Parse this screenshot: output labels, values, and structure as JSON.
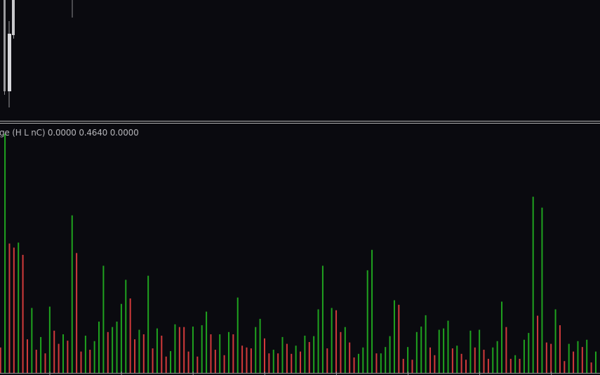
{
  "indicator_label": "ge (H L nC) 0.0000 0.4640 0.0000",
  "colors": {
    "background": "#0a0a0f",
    "up": "#1fa31f",
    "down": "#d23a3a",
    "candle": "#c8c8cc",
    "separator": "#b0b0b0"
  },
  "chart_data": {
    "type": "bar",
    "title": "",
    "xlabel": "",
    "ylabel": "",
    "grid": false,
    "ylim": [
      0,
      5.46
    ],
    "values": [
      0.56,
      5.27,
      2.85,
      2.76,
      2.87,
      2.6,
      0.74,
      1.43,
      0.51,
      0.79,
      0.43,
      1.46,
      0.93,
      0.64,
      0.85,
      0.71,
      3.47,
      2.64,
      0.47,
      0.82,
      0.51,
      0.7,
      1.13,
      2.36,
      0.9,
      1.01,
      1.13,
      1.52,
      2.05,
      1.64,
      0.74,
      0.95,
      0.85,
      2.14,
      0.54,
      0.98,
      0.82,
      0.36,
      0.48,
      1.07,
      1.01,
      1.01,
      0.47,
      1.02,
      0.36,
      1.05,
      1.35,
      0.85,
      0.51,
      0.85,
      0.39,
      0.9,
      0.85,
      1.66,
      0.6,
      0.56,
      0.54,
      1.01,
      1.19,
      0.76,
      0.43,
      0.51,
      0.43,
      0.79,
      0.64,
      0.42,
      0.6,
      0.47,
      0.82,
      0.68,
      0.81,
      1.4,
      2.36,
      0.54,
      1.43,
      1.38,
      0.9,
      1.01,
      0.67,
      0.34,
      0.42,
      0.56,
      2.26,
      2.71,
      0.43,
      0.43,
      0.57,
      0.81,
      1.6,
      1.5,
      0.31,
      0.57,
      0.29,
      0.9,
      1.02,
      1.27,
      0.56,
      0.39,
      0.95,
      0.98,
      1.15,
      0.54,
      0.6,
      0.42,
      0.29,
      0.93,
      0.56,
      0.95,
      0.51,
      0.31,
      0.56,
      0.7,
      1.57,
      1.01,
      0.31,
      0.39,
      0.31,
      0.73,
      0.88,
      3.88,
      1.26,
      3.64,
      0.67,
      0.64,
      1.4,
      1.05,
      0.26,
      0.64,
      0.47,
      0.7,
      0.57,
      0.73,
      0.23,
      0.47
    ],
    "direction": [
      "down",
      "up",
      "down",
      "down",
      "up",
      "down",
      "down",
      "up",
      "down",
      "up",
      "down",
      "up",
      "down",
      "down",
      "up",
      "down",
      "up",
      "down",
      "down",
      "up",
      "down",
      "up",
      "up",
      "up",
      "down",
      "up",
      "up",
      "up",
      "up",
      "down",
      "down",
      "up",
      "down",
      "up",
      "down",
      "up",
      "down",
      "down",
      "up",
      "up",
      "down",
      "down",
      "down",
      "up",
      "down",
      "up",
      "up",
      "down",
      "down",
      "up",
      "down",
      "up",
      "down",
      "up",
      "down",
      "down",
      "down",
      "up",
      "up",
      "down",
      "down",
      "up",
      "down",
      "up",
      "down",
      "down",
      "up",
      "down",
      "up",
      "down",
      "up",
      "up",
      "up",
      "down",
      "up",
      "down",
      "down",
      "up",
      "down",
      "down",
      "up",
      "up",
      "up",
      "up",
      "down",
      "up",
      "up",
      "up",
      "up",
      "down",
      "down",
      "up",
      "down",
      "up",
      "up",
      "up",
      "down",
      "down",
      "up",
      "up",
      "up",
      "down",
      "up",
      "down",
      "down",
      "up",
      "down",
      "up",
      "down",
      "down",
      "up",
      "up",
      "up",
      "down",
      "down",
      "up",
      "down",
      "up",
      "up",
      "up",
      "down",
      "up",
      "down",
      "down",
      "up",
      "down",
      "down",
      "up",
      "down",
      "up",
      "down",
      "up",
      "down",
      "up"
    ]
  }
}
